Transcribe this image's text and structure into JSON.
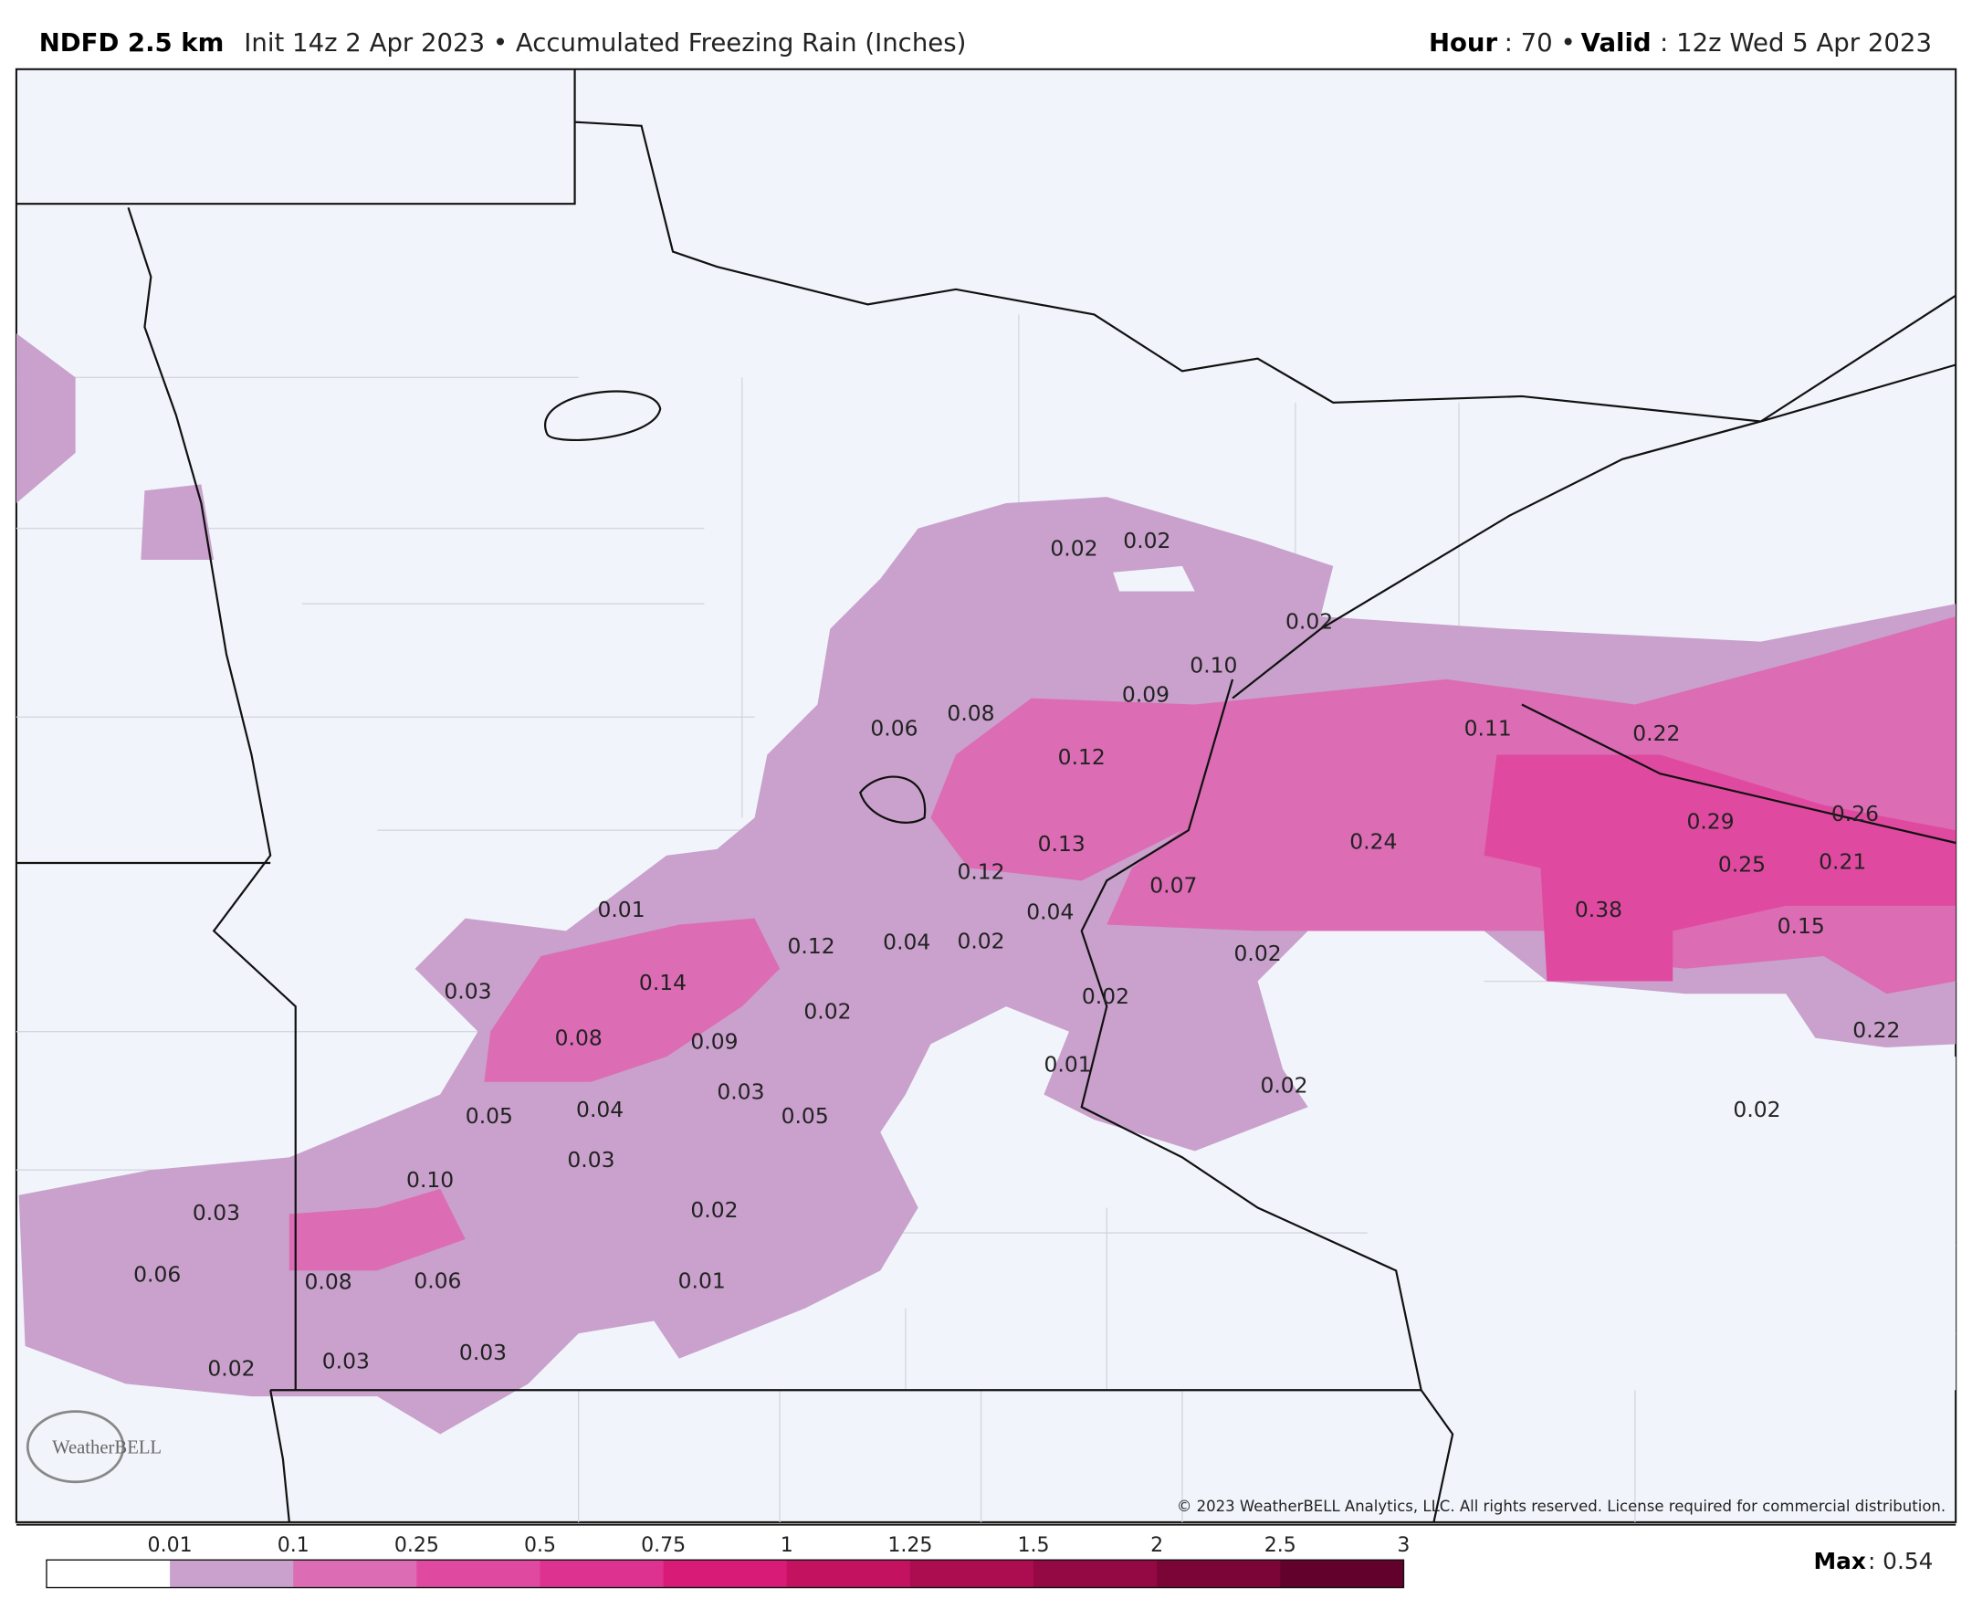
{
  "header": {
    "model": "NDFD 2.5 km",
    "description": "Init 14z 2 Apr 2023 • Accumulated Freezing Rain (Inches)",
    "hour_label": "Hour",
    "hour": ": 70 •",
    "valid_label": "Valid",
    "valid": ": 12z Wed 5 Apr 2023"
  },
  "map": {
    "labels": [
      "0.02",
      "0.02",
      "0.02",
      "0.10",
      "0.09",
      "0.06",
      "0.08",
      "0.12",
      "0.11",
      "0.22",
      "0.13",
      "0.12",
      "0.24",
      "0.29",
      "0.26",
      "0.25",
      "0.21",
      "0.07",
      "0.04",
      "0.01",
      "0.38",
      "0.15",
      "0.12",
      "0.04",
      "0.02",
      "0.02",
      "0.03",
      "0.14",
      "0.02",
      "0.22",
      "0.08",
      "0.09",
      "0.02",
      "0.01",
      "0.02",
      "0.03",
      "0.05",
      "0.04",
      "0.05",
      "0.02",
      "0.03",
      "0.10",
      "0.03",
      "0.02",
      "0.06",
      "0.08",
      "0.06",
      "0.01",
      "0.02",
      "0.03",
      "0.03"
    ],
    "copyright": "© 2023 WeatherBELL Analytics, LLC. All rights reserved. License required for commercial distribution.",
    "logo": "WeatherBELL"
  },
  "legend": {
    "ticks": [
      "0.01",
      "0.1",
      "0.25",
      "0.5",
      "0.75",
      "1",
      "1.25",
      "1.5",
      "2",
      "2.5",
      "3"
    ],
    "colors": [
      "#ffffff",
      "#c9a1cc",
      "#dc6cb4",
      "#df4aa0",
      "#de3290",
      "#d81b76",
      "#c3125f",
      "#ac0c50",
      "#940843",
      "#7c0538",
      "#62022c"
    ],
    "max_label": "Max",
    "max": ": 0.54"
  }
}
